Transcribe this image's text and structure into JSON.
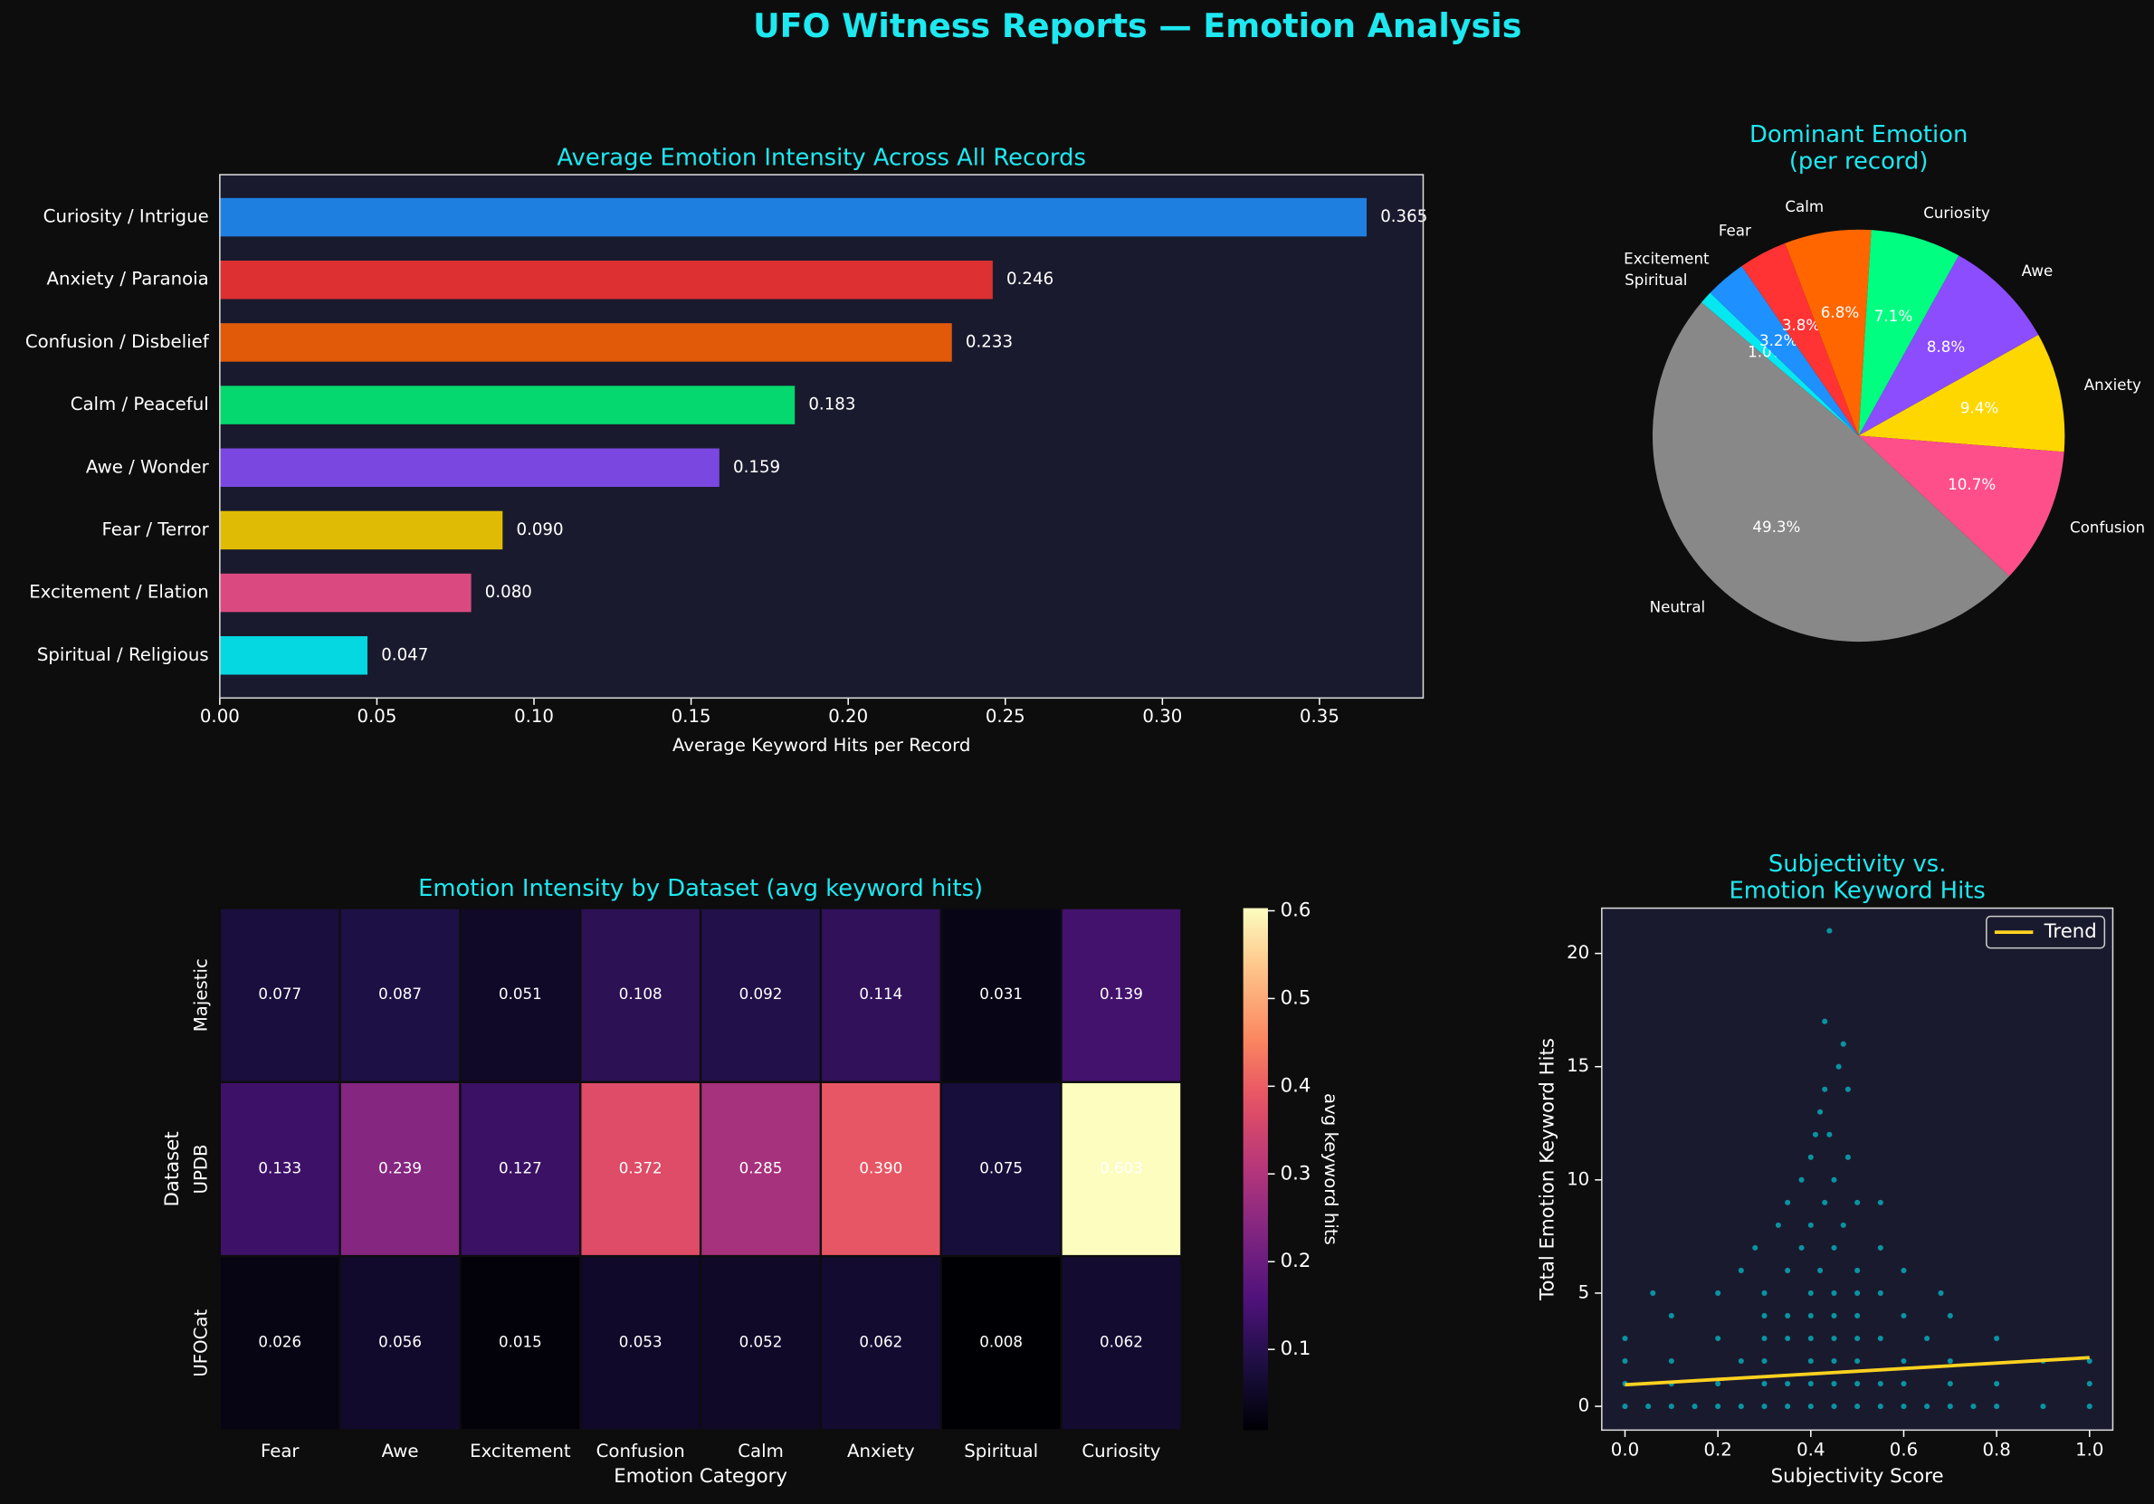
{
  "title": "UFO Witness Reports — Emotion Analysis",
  "chart_data": [
    {
      "type": "bar",
      "orientation": "horizontal",
      "title": "Average Emotion Intensity Across All Records",
      "x_label": "Average Keyword Hits per Record",
      "categories": [
        "Curiosity / Intrigue",
        "Anxiety / Paranoia",
        "Confusion / Disbelief",
        "Calm / Peaceful",
        "Awe / Wonder",
        "Fear / Terror",
        "Excitement / Elation",
        "Spiritual / Religious"
      ],
      "values": [
        0.365,
        0.246,
        0.233,
        0.183,
        0.159,
        0.09,
        0.08,
        0.047
      ],
      "value_labels": [
        "0.365",
        "0.246",
        "0.233",
        "0.183",
        "0.159",
        "0.090",
        "0.080",
        "0.047"
      ],
      "colors": [
        "#1f7fe0",
        "#dc3033",
        "#e05a0a",
        "#05d86e",
        "#7a48e0",
        "#e0bb05",
        "#da4a80",
        "#05d8e0"
      ],
      "xlim": [
        0,
        0.383
      ],
      "xticks": [
        {
          "value": 0,
          "label": "0.00"
        },
        {
          "value": 0.05,
          "label": "0.05"
        },
        {
          "value": 0.1,
          "label": "0.10"
        },
        {
          "value": 0.15,
          "label": "0.15"
        },
        {
          "value": 0.2,
          "label": "0.20"
        },
        {
          "value": 0.25,
          "label": "0.25"
        },
        {
          "value": 0.3,
          "label": "0.30"
        },
        {
          "value": 0.35,
          "label": "0.35"
        }
      ]
    },
    {
      "type": "pie",
      "title": "Dominant Emotion\n(per record)",
      "categories": [
        "Neutral",
        "Spiritual",
        "Excitement",
        "Fear",
        "Calm",
        "Curiosity",
        "Awe",
        "Anxiety",
        "Confusion"
      ],
      "values": [
        49.3,
        1.0,
        3.2,
        3.8,
        6.8,
        7.1,
        8.8,
        9.4,
        10.7
      ],
      "value_labels": [
        "49.3%",
        "1.0%",
        "3.2%",
        "3.8%",
        "6.8%",
        "7.1%",
        "8.8%",
        "9.4%",
        "10.7%"
      ],
      "colors": [
        "#888888",
        "#05e8f0",
        "#1e90ff",
        "#ff3333",
        "#ff6600",
        "#00ff80",
        "#8c4dff",
        "#ffd700",
        "#ff4f8b"
      ]
    },
    {
      "type": "heatmap",
      "title": "Emotion Intensity by Dataset (avg keyword hits)",
      "x_label": "Emotion Category",
      "y_label": "Dataset",
      "categories": [
        "Fear",
        "Awe",
        "Excitement",
        "Confusion",
        "Calm",
        "Anxiety",
        "Spiritual",
        "Curiosity"
      ],
      "rows": [
        "Majestic",
        "UPDB",
        "UFOCat"
      ],
      "values": [
        [
          0.077,
          0.087,
          0.051,
          0.108,
          0.092,
          0.114,
          0.031,
          0.139
        ],
        [
          0.133,
          0.239,
          0.127,
          0.372,
          0.285,
          0.39,
          0.075,
          0.603
        ],
        [
          0.026,
          0.056,
          0.015,
          0.053,
          0.052,
          0.062,
          0.008,
          0.062
        ]
      ],
      "value_labels": [
        [
          "0.077",
          "0.087",
          "0.051",
          "0.108",
          "0.092",
          "0.114",
          "0.031",
          "0.139"
        ],
        [
          "0.133",
          "0.239",
          "0.127",
          "0.372",
          "0.285",
          "0.390",
          "0.075",
          "0.603"
        ],
        [
          "0.026",
          "0.056",
          "0.015",
          "0.053",
          "0.052",
          "0.062",
          "0.008",
          "0.062"
        ]
      ],
      "colormap": "magma",
      "colorbar_label": "avg keyword hits",
      "zlim": [
        0.008,
        0.603
      ],
      "zticks": [
        0.1,
        0.2,
        0.3,
        0.4,
        0.5,
        0.6
      ]
    },
    {
      "type": "scatter",
      "title": "Subjectivity vs.\nEmotion Keyword Hits",
      "x_label": "Subjectivity Score",
      "y_label": "Total Emotion Keyword Hits",
      "xlim": [
        -0.05,
        1.05
      ],
      "ylim": [
        -1.05,
        22
      ],
      "xticks": [
        {
          "value": 0,
          "label": "0.0"
        },
        {
          "value": 0.2,
          "label": "0.2"
        },
        {
          "value": 0.4,
          "label": "0.4"
        },
        {
          "value": 0.6,
          "label": "0.6"
        },
        {
          "value": 0.8,
          "label": "0.8"
        },
        {
          "value": 1,
          "label": "1.0"
        }
      ],
      "yticks": [
        0,
        5,
        10,
        15,
        20
      ],
      "legend": "upper right",
      "series": [
        {
          "type": "scatter",
          "color": "#00e5ee",
          "x": [
            0,
            0.05,
            0.1,
            0.15,
            0.2,
            0.25,
            0.3,
            0.35,
            0.4,
            0.45,
            0.5,
            0.55,
            0.6,
            0.65,
            0.7,
            0.75,
            0.8,
            0.9,
            1.0,
            0,
            0.1,
            0.2,
            0.3,
            0.35,
            0.4,
            0.45,
            0.5,
            0.55,
            0.6,
            0.7,
            0.8,
            1.0,
            0,
            0.1,
            0.25,
            0.3,
            0.4,
            0.45,
            0.5,
            0.6,
            0.7,
            0.9,
            1.0,
            0,
            0.2,
            0.3,
            0.35,
            0.4,
            0.45,
            0.5,
            0.55,
            0.65,
            0.8,
            0.1,
            0.3,
            0.35,
            0.4,
            0.45,
            0.5,
            0.6,
            0.7,
            0.06,
            0.2,
            0.3,
            0.4,
            0.45,
            0.5,
            0.55,
            0.68,
            0.25,
            0.35,
            0.42,
            0.5,
            0.6,
            0.28,
            0.38,
            0.45,
            0.55,
            0.33,
            0.4,
            0.47,
            0.35,
            0.43,
            0.5,
            0.55,
            0.38,
            0.45,
            0.4,
            0.48,
            0.41,
            0.44,
            0.42,
            0.43,
            0.48,
            0.46,
            0.47,
            0.43,
            0.44
          ],
          "values": [
            0,
            0,
            0,
            0,
            0,
            0,
            0,
            0,
            0,
            0,
            0,
            0,
            0,
            0,
            0,
            0,
            0,
            0,
            0,
            1,
            1,
            1,
            1,
            1,
            1,
            1,
            1,
            1,
            1,
            1,
            1,
            1,
            2,
            2,
            2,
            2,
            2,
            2,
            2,
            2,
            2,
            2,
            2,
            3,
            3,
            3,
            3,
            3,
            3,
            3,
            3,
            3,
            3,
            4,
            4,
            4,
            4,
            4,
            4,
            4,
            4,
            5,
            5,
            5,
            5,
            5,
            5,
            5,
            5,
            6,
            6,
            6,
            6,
            6,
            7,
            7,
            7,
            7,
            8,
            8,
            8,
            9,
            9,
            9,
            9,
            10,
            10,
            11,
            11,
            12,
            12,
            13,
            14,
            14,
            15,
            16,
            17,
            21
          ]
        },
        {
          "type": "line",
          "name": "Trend",
          "color": "#ffd21f",
          "x": [
            0,
            1
          ],
          "values": [
            0.95,
            2.15
          ]
        }
      ]
    }
  ]
}
